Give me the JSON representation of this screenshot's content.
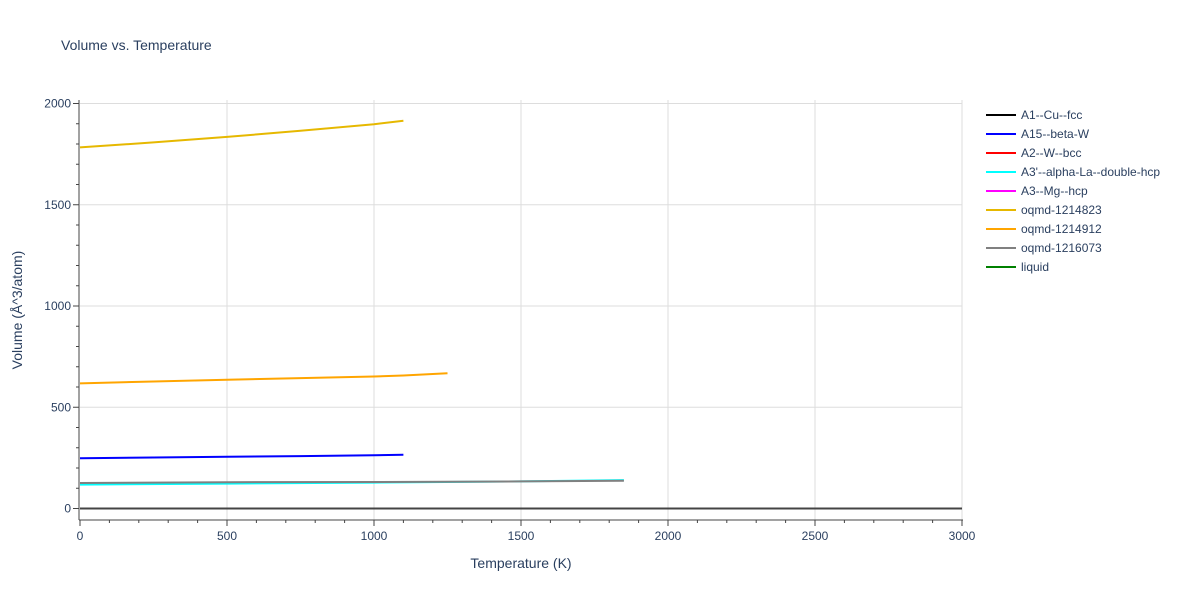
{
  "chart_data": {
    "type": "line",
    "title": "Volume vs. Temperature",
    "xlabel": "Temperature (K)",
    "ylabel": "Volume (Å^3/atom)",
    "xlim": [
      0,
      3000
    ],
    "ylim": [
      -50,
      2000
    ],
    "xticks": [
      0,
      500,
      1000,
      1500,
      2000,
      2500,
      3000
    ],
    "yticks": [
      0,
      500,
      1000,
      1500,
      2000
    ],
    "grid": true,
    "legend_position": "right",
    "series": [
      {
        "name": "A1--Cu--fcc",
        "color": "#000000",
        "x": [],
        "y": []
      },
      {
        "name": "A15--beta-W",
        "color": "#0000ff",
        "x": [
          0,
          250,
          500,
          750,
          1000,
          1100
        ],
        "y": [
          248,
          252,
          256,
          259,
          263,
          265
        ]
      },
      {
        "name": "A2--W--bcc",
        "color": "#ff0000",
        "x": [],
        "y": []
      },
      {
        "name": "A3'--alpha-La--double-hcp",
        "color": "#00ffff",
        "x": [
          0,
          500,
          1000,
          1500,
          1850
        ],
        "y": [
          118,
          123,
          128,
          134,
          140
        ]
      },
      {
        "name": "A3--Mg--hcp",
        "color": "#ff00ff",
        "x": [],
        "y": []
      },
      {
        "name": "oqmd-1214823",
        "color": "#e6b800",
        "x": [
          0,
          250,
          500,
          750,
          1000,
          1100
        ],
        "y": [
          1783,
          1808,
          1835,
          1865,
          1898,
          1915
        ]
      },
      {
        "name": "oqmd-1214912",
        "color": "#ffa500",
        "x": [
          0,
          250,
          500,
          750,
          1000,
          1100,
          1250
        ],
        "y": [
          618,
          627,
          636,
          644,
          652,
          657,
          668
        ]
      },
      {
        "name": "oqmd-1216073",
        "color": "#808080",
        "x": [
          0,
          500,
          1000,
          1500,
          1850
        ],
        "y": [
          126,
          130,
          131,
          134,
          137
        ]
      },
      {
        "name": "liquid",
        "color": "#008000",
        "x": [],
        "y": []
      }
    ]
  }
}
